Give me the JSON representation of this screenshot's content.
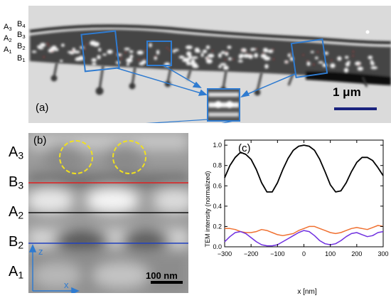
{
  "panel_a": {
    "label": "(a)",
    "scale_bar": "1 μm",
    "row_labels": {
      "a3": {
        "main": "A",
        "sub": "3"
      },
      "b4": {
        "main": "B",
        "sub": "4"
      },
      "a2": {
        "main": "A",
        "sub": "2"
      },
      "b3": {
        "main": "B",
        "sub": "3"
      },
      "a1": {
        "main": "A",
        "sub": "1"
      },
      "b2": {
        "main": "B",
        "sub": "2"
      },
      "b1": {
        "main": "B",
        "sub": "1"
      }
    }
  },
  "panel_b": {
    "label": "(b)",
    "scale_bar": "100 nm",
    "axis_z": "z",
    "axis_x": "x",
    "row_labels": {
      "a3": {
        "main": "A",
        "sub": "3"
      },
      "b3": {
        "main": "B",
        "sub": "3"
      },
      "a2": {
        "main": "A",
        "sub": "2"
      },
      "b2": {
        "main": "B",
        "sub": "2"
      },
      "a1": {
        "main": "A",
        "sub": "1"
      }
    },
    "line_colors": {
      "b3": "#e02020",
      "a2": "#111111",
      "b2": "#2040c0"
    },
    "circle_color": "#f0e020"
  },
  "colors": {
    "frame_blue": "#2f7bd0",
    "scale_navy": "#1a237e"
  },
  "chart_data": {
    "type": "line",
    "label": "(c)",
    "xlabel": "x [nm]",
    "ylabel": "TEM intensity (normalized)",
    "xlim": [
      -300,
      300
    ],
    "ylim": [
      0,
      1.05
    ],
    "xticks": [
      -300,
      -200,
      -100,
      0,
      100,
      200,
      300
    ],
    "yticks": [
      0.0,
      0.2,
      0.4,
      0.6,
      0.8,
      1.0
    ],
    "series": [
      {
        "color": "#000000",
        "x": [
          -300,
          -280,
          -260,
          -240,
          -220,
          -200,
          -180,
          -160,
          -140,
          -120,
          -100,
          -80,
          -60,
          -40,
          -20,
          0,
          20,
          40,
          60,
          80,
          100,
          120,
          140,
          160,
          180,
          200,
          220,
          240,
          260,
          280,
          300
        ],
        "y": [
          0.68,
          0.8,
          0.88,
          0.93,
          0.91,
          0.86,
          0.76,
          0.63,
          0.54,
          0.54,
          0.63,
          0.76,
          0.87,
          0.95,
          0.99,
          1.0,
          0.99,
          0.95,
          0.86,
          0.74,
          0.61,
          0.54,
          0.55,
          0.63,
          0.74,
          0.83,
          0.88,
          0.88,
          0.85,
          0.78,
          0.7
        ]
      },
      {
        "color": "#f07030",
        "x": [
          -300,
          -280,
          -260,
          -240,
          -220,
          -200,
          -180,
          -160,
          -140,
          -120,
          -100,
          -80,
          -60,
          -40,
          -20,
          0,
          20,
          40,
          60,
          80,
          100,
          120,
          140,
          160,
          180,
          200,
          220,
          240,
          260,
          280,
          300
        ],
        "y": [
          0.18,
          0.18,
          0.17,
          0.15,
          0.14,
          0.14,
          0.15,
          0.17,
          0.16,
          0.14,
          0.12,
          0.11,
          0.12,
          0.13,
          0.16,
          0.18,
          0.2,
          0.2,
          0.18,
          0.16,
          0.14,
          0.13,
          0.14,
          0.16,
          0.18,
          0.19,
          0.18,
          0.17,
          0.19,
          0.21,
          0.2
        ]
      },
      {
        "color": "#7030e0",
        "x": [
          -300,
          -280,
          -260,
          -240,
          -220,
          -200,
          -180,
          -160,
          -140,
          -120,
          -100,
          -80,
          -60,
          -40,
          -20,
          0,
          20,
          40,
          60,
          80,
          100,
          120,
          140,
          160,
          180,
          200,
          220,
          240,
          260,
          280,
          300
        ],
        "y": [
          0.05,
          0.1,
          0.14,
          0.15,
          0.13,
          0.09,
          0.05,
          0.02,
          0.01,
          0.01,
          0.02,
          0.05,
          0.08,
          0.11,
          0.14,
          0.16,
          0.15,
          0.11,
          0.06,
          0.03,
          0.02,
          0.03,
          0.06,
          0.1,
          0.13,
          0.14,
          0.12,
          0.1,
          0.11,
          0.14,
          0.15
        ]
      }
    ]
  }
}
